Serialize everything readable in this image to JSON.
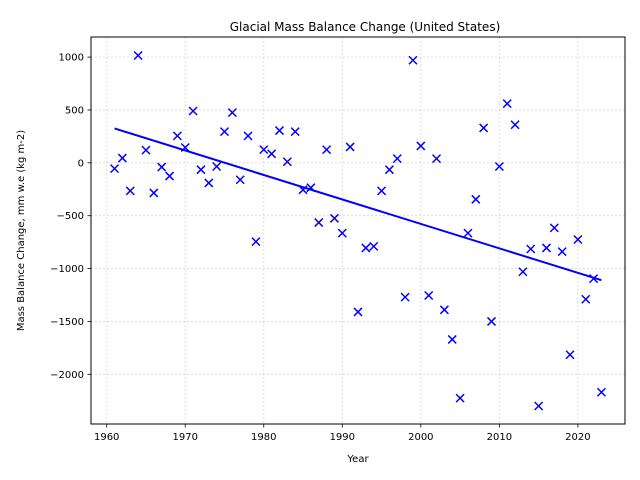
{
  "chart_data": {
    "type": "scatter",
    "title": "Glacial Mass Balance Change (United States)",
    "xlabel": "Year",
    "ylabel": "Mass Balance Change, mm w.e (kg m-2)",
    "xlim": [
      1958,
      2026
    ],
    "ylim": [
      -2470,
      1190
    ],
    "xticks": [
      1960,
      1970,
      1980,
      1990,
      2000,
      2010,
      2020
    ],
    "yticks": [
      -2000,
      -1500,
      -1000,
      -500,
      0,
      500,
      1000
    ],
    "grid": true,
    "marker_color": "#0000ff",
    "marker": "x",
    "trend_color": "#0000ff",
    "series": [
      {
        "points": [
          [
            1961,
            -55
          ],
          [
            1962,
            45
          ],
          [
            1963,
            -265
          ],
          [
            1964,
            1015
          ],
          [
            1965,
            120
          ],
          [
            1966,
            -285
          ],
          [
            1967,
            -40
          ],
          [
            1968,
            -125
          ],
          [
            1969,
            255
          ],
          [
            1970,
            145
          ],
          [
            1971,
            490
          ],
          [
            1972,
            -65
          ],
          [
            1973,
            -190
          ],
          [
            1974,
            -35
          ],
          [
            1975,
            295
          ],
          [
            1976,
            475
          ],
          [
            1977,
            -160
          ],
          [
            1978,
            255
          ],
          [
            1979,
            -745
          ],
          [
            1980,
            125
          ],
          [
            1981,
            85
          ],
          [
            1982,
            305
          ],
          [
            1983,
            10
          ],
          [
            1984,
            295
          ],
          [
            1985,
            -255
          ],
          [
            1986,
            -235
          ],
          [
            1987,
            -565
          ],
          [
            1988,
            125
          ],
          [
            1989,
            -525
          ],
          [
            1990,
            -665
          ],
          [
            1991,
            150
          ],
          [
            1992,
            -1410
          ],
          [
            1993,
            -805
          ],
          [
            1994,
            -790
          ],
          [
            1995,
            -265
          ],
          [
            1996,
            -65
          ],
          [
            1997,
            40
          ],
          [
            1998,
            -1270
          ],
          [
            1999,
            970
          ],
          [
            2000,
            160
          ],
          [
            2001,
            -1255
          ],
          [
            2002,
            40
          ],
          [
            2003,
            -1390
          ],
          [
            2004,
            -1670
          ],
          [
            2005,
            -2225
          ],
          [
            2006,
            -665
          ],
          [
            2007,
            -345
          ],
          [
            2008,
            330
          ],
          [
            2009,
            -1500
          ],
          [
            2010,
            -35
          ],
          [
            2011,
            560
          ],
          [
            2012,
            360
          ],
          [
            2013,
            -1030
          ],
          [
            2014,
            -815
          ],
          [
            2015,
            -2300
          ],
          [
            2016,
            -805
          ],
          [
            2017,
            -615
          ],
          [
            2018,
            -840
          ],
          [
            2019,
            -1815
          ],
          [
            2020,
            -725
          ],
          [
            2021,
            -1290
          ],
          [
            2022,
            -1095
          ],
          [
            2023,
            -2170
          ]
        ]
      }
    ],
    "trend_line": [
      [
        1961,
        325
      ],
      [
        2023,
        -1110
      ]
    ]
  }
}
